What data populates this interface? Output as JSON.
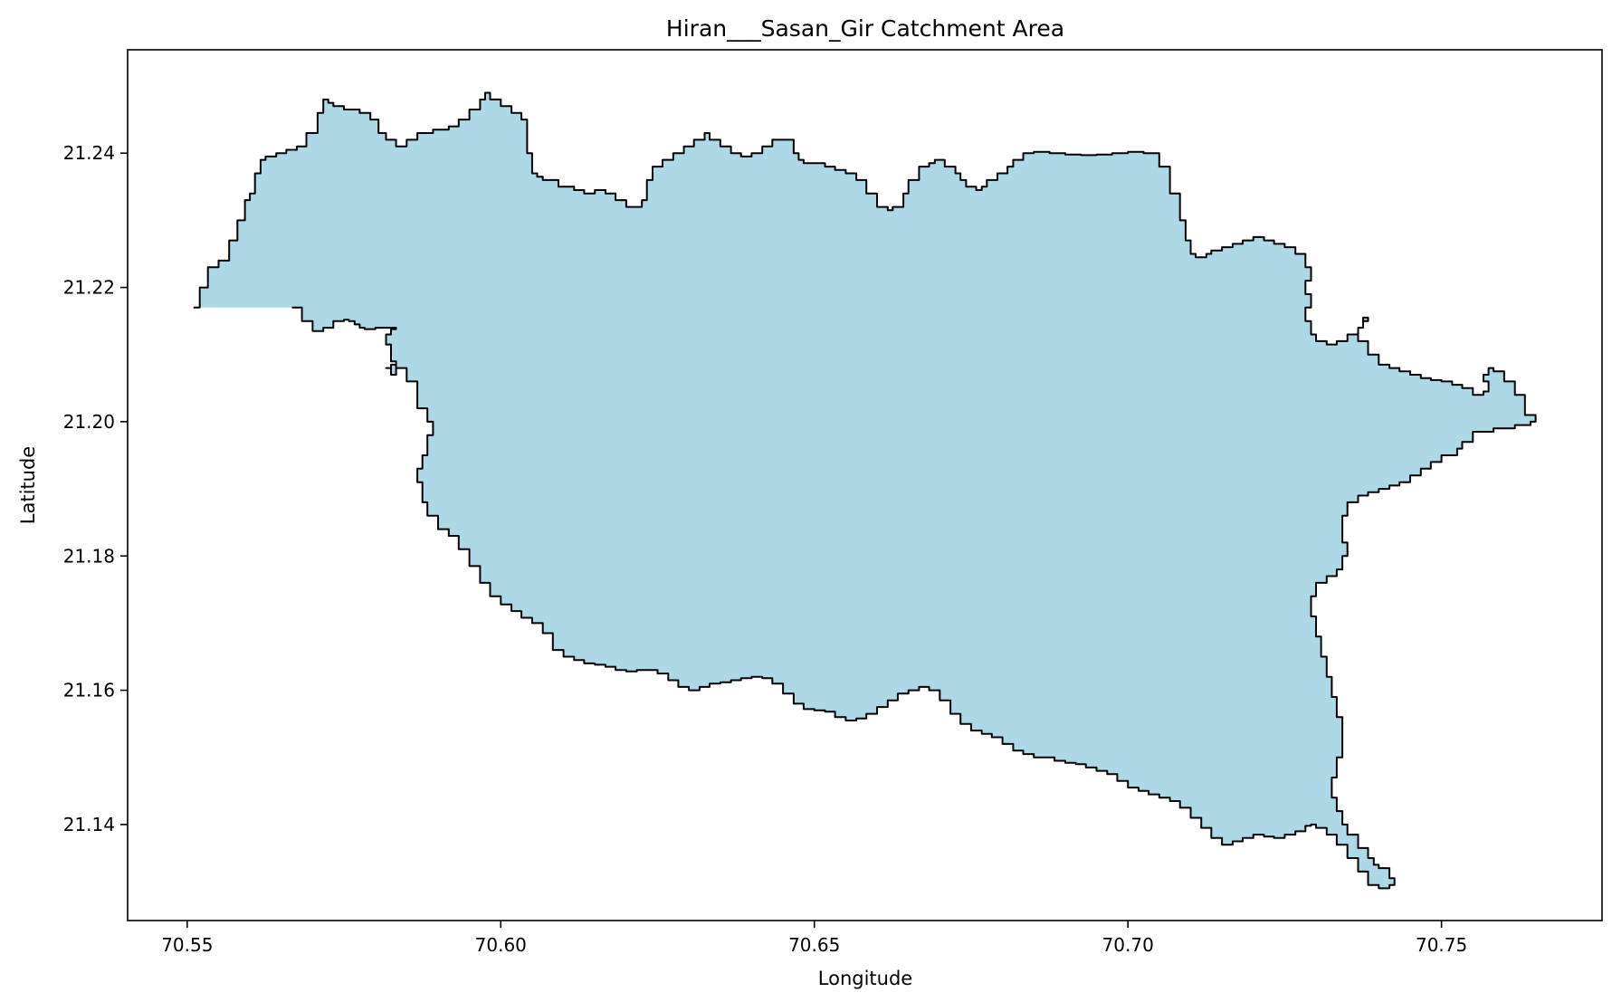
{
  "chart_data": {
    "type": "map",
    "title": "Hiran___Sasan_Gir Catchment Area",
    "xlabel": "Longitude",
    "ylabel": "Latitude",
    "xlim": [
      70.5405,
      70.7756
    ],
    "ylim": [
      21.1257,
      21.2554
    ],
    "x_ticks": [
      70.55,
      70.6,
      70.65,
      70.7,
      70.75
    ],
    "x_tick_labels": [
      "70.55",
      "70.60",
      "70.65",
      "70.70",
      "70.75"
    ],
    "y_ticks": [
      21.14,
      21.16,
      21.18,
      21.2,
      21.22,
      21.24
    ],
    "y_tick_labels": [
      "21.14",
      "21.16",
      "21.18",
      "21.20",
      "21.22",
      "21.24"
    ],
    "grid": false,
    "fill_color": "#add8e6",
    "edge_color": "#000000",
    "polygon": {
      "name": "Hiran___Sasan_Gir",
      "lon": [
        70.551,
        70.552,
        70.5533,
        70.555,
        70.5567,
        70.558,
        70.5592,
        70.56,
        70.5608,
        70.5617,
        70.5625,
        70.5642,
        70.5658,
        70.5675,
        70.569,
        70.5708,
        70.5717,
        70.5725,
        70.5733,
        70.575,
        70.5775,
        70.5792,
        70.5805,
        70.5817,
        70.5833,
        70.585,
        70.5867,
        70.5892,
        70.5917,
        70.5933,
        70.595,
        70.5967,
        70.5975,
        70.5983,
        70.6,
        70.6017,
        70.6033,
        70.6042,
        70.605,
        70.6058,
        70.6067,
        70.6092,
        70.6117,
        70.6133,
        70.615,
        70.6167,
        70.6183,
        70.62,
        70.6217,
        70.6225,
        70.6233,
        70.6242,
        70.6258,
        70.6275,
        70.6292,
        70.6308,
        70.6325,
        70.6333,
        70.635,
        70.6367,
        70.6383,
        70.64,
        70.6417,
        70.6433,
        70.645,
        70.6467,
        70.6475,
        70.6483,
        70.65,
        70.6517,
        70.6533,
        70.655,
        70.6567,
        70.6583,
        70.66,
        70.6617,
        70.6625,
        70.6642,
        70.665,
        70.6667,
        70.6683,
        70.6692,
        70.6708,
        70.6725,
        70.6733,
        70.6742,
        70.6758,
        70.6767,
        70.6775,
        70.6792,
        70.6808,
        70.6817,
        70.6833,
        70.685,
        70.6875,
        70.69,
        70.6925,
        70.695,
        70.6975,
        70.7,
        70.7025,
        70.705,
        70.7067,
        70.7083,
        70.7092,
        70.71,
        70.7108,
        70.7117,
        70.7125,
        70.7133,
        70.715,
        70.7167,
        70.7183,
        70.72,
        70.7217,
        70.7233,
        70.725,
        70.7267,
        70.7283,
        70.7292,
        70.7283,
        70.7292,
        70.7283,
        70.7292,
        70.73,
        70.7317,
        70.7333,
        70.735,
        70.7367,
        70.7375,
        70.7383,
        70.7375,
        70.7367,
        70.7383,
        70.74,
        70.7417,
        70.7433,
        70.745,
        70.7467,
        70.7483,
        70.75,
        70.7517,
        70.7533,
        70.755,
        70.7567,
        70.7575,
        70.7567,
        70.7575,
        70.7583,
        70.76,
        70.7617,
        70.7633,
        70.765,
        70.7642,
        70.7617,
        70.7583,
        70.755,
        70.7533,
        70.7525,
        70.75,
        70.7483,
        70.7467,
        70.745,
        70.7433,
        70.7417,
        70.74,
        70.7383,
        70.7367,
        70.735,
        70.7342,
        70.7342,
        70.735,
        70.7342,
        70.7333,
        70.7317,
        70.73,
        70.7292,
        70.73,
        70.7308,
        70.7317,
        70.7325,
        70.7333,
        70.7342,
        70.7342,
        70.7333,
        70.7325,
        70.7333,
        70.7342,
        70.735,
        70.7367,
        70.7383,
        70.7392,
        70.74,
        70.7417,
        70.7425,
        70.7417,
        70.74,
        70.7383,
        70.7367,
        70.735,
        70.7333,
        70.7317,
        70.73,
        70.7292,
        70.7283,
        70.7267,
        70.725,
        70.7233,
        70.7217,
        70.72,
        70.7183,
        70.7167,
        70.715,
        70.7133,
        70.7117,
        70.71,
        70.7083,
        70.7067,
        70.705,
        70.7033,
        70.7017,
        70.7,
        70.6983,
        70.6967,
        70.695,
        70.6933,
        70.6917,
        70.69,
        70.6883,
        70.6867,
        70.685,
        70.6833,
        70.6817,
        70.68,
        70.6783,
        70.6767,
        70.675,
        70.6733,
        70.6717,
        70.67,
        70.6683,
        70.6667,
        70.665,
        70.6633,
        70.6617,
        70.66,
        70.6583,
        70.6567,
        70.655,
        70.6533,
        70.6517,
        70.65,
        70.6483,
        70.6467,
        70.645,
        70.6433,
        70.6417,
        70.64,
        70.6383,
        70.6367,
        70.635,
        70.6333,
        70.6317,
        70.63,
        70.6283,
        70.6267,
        70.625,
        70.6233,
        70.6217,
        70.62,
        70.6183,
        70.6167,
        70.615,
        70.6133,
        70.6117,
        70.61,
        70.6083,
        70.6067,
        70.605,
        70.6033,
        70.6017,
        70.6,
        70.5983,
        70.5967,
        70.595,
        70.5933,
        70.5917,
        70.59,
        70.5883,
        70.5875,
        70.5867,
        70.5875,
        70.5883,
        70.5892,
        70.5883,
        70.5867,
        70.585,
        70.5833,
        70.5825,
        70.5817,
        70.5825,
        70.5833,
        70.5825,
        70.5817,
        70.5825,
        70.5833,
        70.5817,
        70.58,
        70.5783,
        70.5775,
        70.5767,
        70.5758,
        70.575,
        70.5733,
        70.5717,
        70.57,
        70.5683,
        70.5667,
        70.565,
        70.5633,
        70.5617,
        70.56,
        70.5583,
        70.5567,
        70.555,
        70.5533,
        70.5525,
        70.5517,
        70.551
      ],
      "lat": [
        21.217,
        21.22,
        21.223,
        21.224,
        21.227,
        21.23,
        21.233,
        21.234,
        21.237,
        21.239,
        21.2395,
        21.24,
        21.2405,
        21.241,
        21.243,
        21.246,
        21.248,
        21.2475,
        21.247,
        21.2465,
        21.246,
        21.245,
        21.243,
        21.242,
        21.241,
        21.242,
        21.243,
        21.2435,
        21.244,
        21.245,
        21.2465,
        21.248,
        21.249,
        21.248,
        21.247,
        21.246,
        21.245,
        21.24,
        21.237,
        21.2365,
        21.236,
        21.235,
        21.2345,
        21.234,
        21.2345,
        21.234,
        21.233,
        21.232,
        21.232,
        21.233,
        21.236,
        21.238,
        21.239,
        21.24,
        21.241,
        21.242,
        21.243,
        21.242,
        21.241,
        21.24,
        21.2395,
        21.24,
        21.241,
        21.242,
        21.242,
        21.24,
        21.239,
        21.2385,
        21.2385,
        21.238,
        21.2375,
        21.237,
        21.236,
        21.234,
        21.232,
        21.2315,
        21.232,
        21.234,
        21.236,
        21.238,
        21.2385,
        21.239,
        21.238,
        21.237,
        21.236,
        21.235,
        21.2345,
        21.235,
        21.236,
        21.237,
        21.238,
        21.239,
        21.24,
        21.2402,
        21.24,
        21.2398,
        21.2397,
        21.2398,
        21.24,
        21.2402,
        21.24,
        21.238,
        21.234,
        21.23,
        21.227,
        21.225,
        21.2245,
        21.2245,
        21.225,
        21.2255,
        21.226,
        21.2265,
        21.227,
        21.2275,
        21.227,
        21.2265,
        21.226,
        21.225,
        21.223,
        21.221,
        21.219,
        21.217,
        21.215,
        21.213,
        21.212,
        21.2115,
        21.212,
        21.213,
        21.214,
        21.215,
        21.2155,
        21.214,
        21.212,
        21.21,
        21.2085,
        21.208,
        21.2075,
        21.207,
        21.2065,
        21.2062,
        21.206,
        21.2055,
        21.205,
        21.204,
        21.2045,
        21.206,
        21.207,
        21.208,
        21.2075,
        21.206,
        21.204,
        21.201,
        21.2,
        21.1995,
        21.199,
        21.1985,
        21.197,
        21.196,
        21.195,
        21.194,
        21.193,
        21.192,
        21.191,
        21.1905,
        21.19,
        21.1895,
        21.189,
        21.188,
        21.186,
        21.184,
        21.182,
        21.18,
        21.178,
        21.177,
        21.176,
        21.174,
        21.171,
        21.168,
        21.165,
        21.162,
        21.159,
        21.156,
        21.153,
        21.15,
        21.147,
        21.144,
        21.142,
        21.14,
        21.1385,
        21.1365,
        21.135,
        21.134,
        21.1335,
        21.132,
        21.131,
        21.1305,
        21.131,
        21.133,
        21.135,
        21.137,
        21.1385,
        21.1395,
        21.14,
        21.1398,
        21.139,
        21.1385,
        21.138,
        21.1382,
        21.1385,
        21.138,
        21.1375,
        21.137,
        21.138,
        21.1395,
        21.141,
        21.1425,
        21.1435,
        21.144,
        21.1445,
        21.145,
        21.1455,
        21.1465,
        21.1475,
        21.148,
        21.1485,
        21.149,
        21.1492,
        21.1495,
        21.15,
        21.15,
        21.1505,
        21.151,
        21.152,
        21.153,
        21.1535,
        21.154,
        21.155,
        21.1565,
        21.1585,
        21.16,
        21.1605,
        21.16,
        21.1595,
        21.1585,
        21.1575,
        21.1565,
        21.1558,
        21.1555,
        21.156,
        21.1568,
        21.157,
        21.1572,
        21.158,
        21.1595,
        21.161,
        21.1618,
        21.162,
        21.1618,
        21.1615,
        21.1612,
        21.161,
        21.1605,
        21.16,
        21.1605,
        21.1615,
        21.1625,
        21.163,
        21.163,
        21.1628,
        21.163,
        21.1635,
        21.1638,
        21.164,
        21.1645,
        21.165,
        21.166,
        21.1685,
        21.17,
        21.1708,
        21.1718,
        21.1728,
        21.174,
        21.176,
        21.1785,
        21.181,
        21.183,
        21.184,
        21.186,
        21.188,
        21.191,
        21.193,
        21.195,
        21.198,
        21.2,
        21.202,
        21.206,
        21.208,
        21.2085,
        21.208,
        21.208,
        21.207,
        21.209,
        21.2115,
        21.213,
        21.2138,
        21.214,
        21.214,
        21.2138,
        21.214,
        21.2145,
        21.215,
        21.2152,
        21.215,
        21.214,
        21.2135,
        21.215,
        21.217
      ]
    }
  }
}
